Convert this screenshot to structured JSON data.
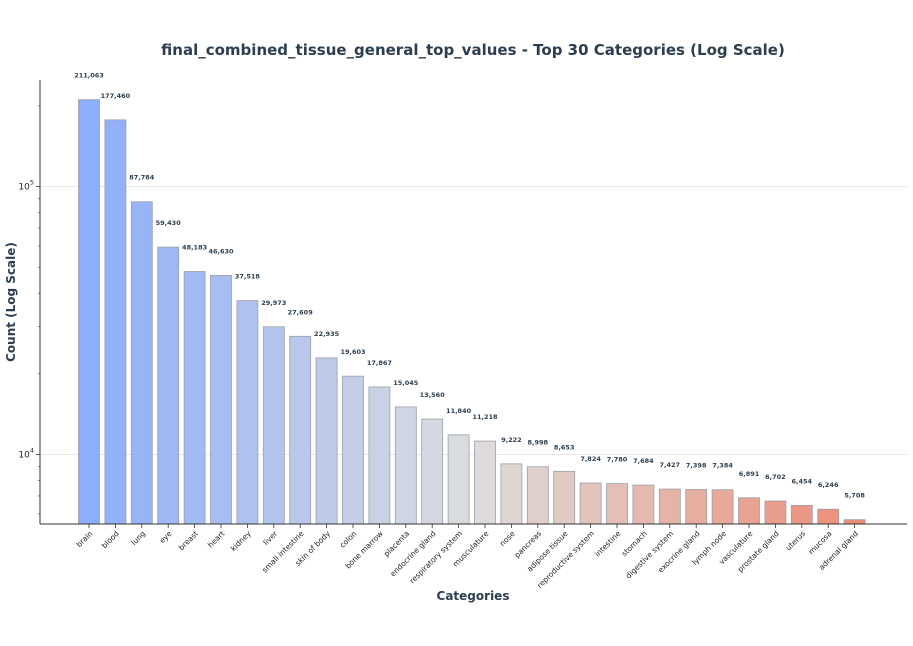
{
  "chart_data": {
    "type": "bar",
    "title": "final_combined_tissue_general_top_values - Top 30 Categories (Log Scale)",
    "xlabel": "Categories",
    "ylabel": "Count (Log Scale)",
    "yscale": "log",
    "ylim": [
      5500,
      250000
    ],
    "yticks": [
      {
        "value": 10000,
        "base": "10",
        "exp": "4"
      },
      {
        "value": 100000,
        "base": "10",
        "exp": "5"
      }
    ],
    "grid": true,
    "categories": [
      "brain",
      "blood",
      "lung",
      "eye",
      "breast",
      "heart",
      "kidney",
      "liver",
      "small intestine",
      "skin of body",
      "colon",
      "bone marrow",
      "placenta",
      "endocrine gland",
      "respiratory system",
      "musculature",
      "nose",
      "pancreas",
      "adipose tissue",
      "reproductive system",
      "intestine",
      "stomach",
      "digestive system",
      "exocrine gland",
      "lymph node",
      "vasculature",
      "prostate gland",
      "uterus",
      "mucosa",
      "adrenal gland"
    ],
    "values": [
      211063,
      177460,
      87784,
      59430,
      48183,
      46630,
      37518,
      29973,
      27609,
      22935,
      19603,
      17867,
      15045,
      13560,
      11840,
      11218,
      9222,
      8998,
      8653,
      7824,
      7780,
      7684,
      7427,
      7398,
      7384,
      6891,
      6702,
      6454,
      6246,
      5708
    ],
    "value_labels": [
      "211,063",
      "177,460",
      "87,784",
      "59,430",
      "48,183",
      "46,630",
      "37,518",
      "29,973",
      "27,609",
      "22,935",
      "19,603",
      "17,867",
      "15,045",
      "13,560",
      "11,840",
      "11,218",
      "9,222",
      "8,998",
      "8,653",
      "7,824",
      "7,780",
      "7,684",
      "7,427",
      "7,398",
      "7,384",
      "6,891",
      "6,702",
      "6,454",
      "6,246",
      "5,708"
    ],
    "colormap": {
      "start": "#8caefb",
      "mid": "#dddddd",
      "end": "#ec8d76"
    }
  }
}
